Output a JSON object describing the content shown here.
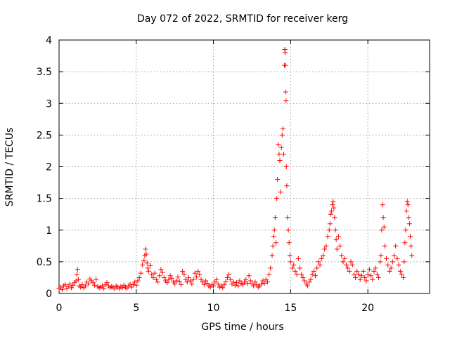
{
  "chart_data": {
    "type": "scatter",
    "title": "Day 072 of 2022, SRMTID for receiver kerg",
    "xlabel": "GPS time / hours",
    "ylabel": "SRMTID / TECUs",
    "xlim": [
      0,
      24
    ],
    "ylim": [
      0,
      4
    ],
    "xticks": [
      0,
      5,
      10,
      15,
      20
    ],
    "xtick_labels": [
      "0",
      "5",
      "10",
      "15",
      "20"
    ],
    "yticks": [
      0,
      0.5,
      1,
      1.5,
      2,
      2.5,
      3,
      3.5,
      4
    ],
    "ytick_labels": [
      "0",
      "0.5",
      "1",
      "1.5",
      "2",
      "2.5",
      "3",
      "3.5",
      "4"
    ],
    "grid": true,
    "marker": "+",
    "color": "#ff0000",
    "series": [
      {
        "name": "SRMTID",
        "points": [
          [
            0.0,
            0.08
          ],
          [
            0.1,
            0.1
          ],
          [
            0.2,
            0.06
          ],
          [
            0.3,
            0.12
          ],
          [
            0.4,
            0.14
          ],
          [
            0.5,
            0.08
          ],
          [
            0.6,
            0.11
          ],
          [
            0.7,
            0.15
          ],
          [
            0.8,
            0.09
          ],
          [
            0.9,
            0.13
          ],
          [
            1.0,
            0.17
          ],
          [
            1.1,
            0.2
          ],
          [
            1.15,
            0.3
          ],
          [
            1.2,
            0.38
          ],
          [
            1.25,
            0.22
          ],
          [
            1.3,
            0.12
          ],
          [
            1.4,
            0.1
          ],
          [
            1.5,
            0.14
          ],
          [
            1.6,
            0.09
          ],
          [
            1.7,
            0.12
          ],
          [
            1.8,
            0.18
          ],
          [
            1.9,
            0.15
          ],
          [
            2.0,
            0.23
          ],
          [
            2.1,
            0.2
          ],
          [
            2.2,
            0.17
          ],
          [
            2.3,
            0.13
          ],
          [
            2.4,
            0.22
          ],
          [
            2.5,
            0.11
          ],
          [
            2.6,
            0.09
          ],
          [
            2.7,
            0.1
          ],
          [
            2.8,
            0.12
          ],
          [
            2.9,
            0.08
          ],
          [
            3.0,
            0.14
          ],
          [
            3.1,
            0.17
          ],
          [
            3.2,
            0.12
          ],
          [
            3.3,
            0.09
          ],
          [
            3.4,
            0.11
          ],
          [
            3.5,
            0.1
          ],
          [
            3.6,
            0.07
          ],
          [
            3.7,
            0.12
          ],
          [
            3.8,
            0.1
          ],
          [
            3.9,
            0.08
          ],
          [
            4.0,
            0.11
          ],
          [
            4.1,
            0.09
          ],
          [
            4.2,
            0.13
          ],
          [
            4.3,
            0.1
          ],
          [
            4.4,
            0.08
          ],
          [
            4.5,
            0.12
          ],
          [
            4.6,
            0.15
          ],
          [
            4.7,
            0.1
          ],
          [
            4.8,
            0.14
          ],
          [
            4.9,
            0.18
          ],
          [
            5.0,
            0.13
          ],
          [
            5.1,
            0.2
          ],
          [
            5.2,
            0.25
          ],
          [
            5.3,
            0.32
          ],
          [
            5.4,
            0.45
          ],
          [
            5.5,
            0.52
          ],
          [
            5.55,
            0.6
          ],
          [
            5.6,
            0.7
          ],
          [
            5.65,
            0.62
          ],
          [
            5.7,
            0.48
          ],
          [
            5.75,
            0.4
          ],
          [
            5.8,
            0.35
          ],
          [
            5.9,
            0.44
          ],
          [
            6.0,
            0.3
          ],
          [
            6.1,
            0.25
          ],
          [
            6.2,
            0.32
          ],
          [
            6.3,
            0.22
          ],
          [
            6.4,
            0.18
          ],
          [
            6.5,
            0.28
          ],
          [
            6.6,
            0.38
          ],
          [
            6.7,
            0.33
          ],
          [
            6.8,
            0.25
          ],
          [
            6.9,
            0.2
          ],
          [
            7.0,
            0.17
          ],
          [
            7.1,
            0.22
          ],
          [
            7.2,
            0.28
          ],
          [
            7.3,
            0.24
          ],
          [
            7.4,
            0.18
          ],
          [
            7.5,
            0.15
          ],
          [
            7.6,
            0.2
          ],
          [
            7.7,
            0.26
          ],
          [
            7.8,
            0.19
          ],
          [
            7.9,
            0.14
          ],
          [
            8.0,
            0.35
          ],
          [
            8.1,
            0.3
          ],
          [
            8.2,
            0.22
          ],
          [
            8.3,
            0.18
          ],
          [
            8.4,
            0.25
          ],
          [
            8.5,
            0.2
          ],
          [
            8.6,
            0.15
          ],
          [
            8.7,
            0.22
          ],
          [
            8.8,
            0.32
          ],
          [
            8.9,
            0.26
          ],
          [
            9.0,
            0.35
          ],
          [
            9.1,
            0.3
          ],
          [
            9.2,
            0.22
          ],
          [
            9.3,
            0.18
          ],
          [
            9.4,
            0.14
          ],
          [
            9.5,
            0.2
          ],
          [
            9.6,
            0.16
          ],
          [
            9.7,
            0.12
          ],
          [
            9.8,
            0.1
          ],
          [
            9.9,
            0.14
          ],
          [
            10.0,
            0.12
          ],
          [
            10.1,
            0.18
          ],
          [
            10.2,
            0.22
          ],
          [
            10.3,
            0.15
          ],
          [
            10.4,
            0.1
          ],
          [
            10.5,
            0.12
          ],
          [
            10.6,
            0.09
          ],
          [
            10.7,
            0.14
          ],
          [
            10.8,
            0.19
          ],
          [
            10.9,
            0.25
          ],
          [
            11.0,
            0.3
          ],
          [
            11.1,
            0.22
          ],
          [
            11.2,
            0.15
          ],
          [
            11.3,
            0.18
          ],
          [
            11.4,
            0.13
          ],
          [
            11.5,
            0.17
          ],
          [
            11.6,
            0.12
          ],
          [
            11.7,
            0.2
          ],
          [
            11.8,
            0.16
          ],
          [
            11.9,
            0.14
          ],
          [
            12.0,
            0.18
          ],
          [
            12.1,
            0.22
          ],
          [
            12.2,
            0.16
          ],
          [
            12.3,
            0.28
          ],
          [
            12.4,
            0.2
          ],
          [
            12.5,
            0.15
          ],
          [
            12.6,
            0.12
          ],
          [
            12.7,
            0.18
          ],
          [
            12.8,
            0.14
          ],
          [
            12.9,
            0.1
          ],
          [
            13.0,
            0.12
          ],
          [
            13.1,
            0.15
          ],
          [
            13.2,
            0.2
          ],
          [
            13.3,
            0.16
          ],
          [
            13.4,
            0.22
          ],
          [
            13.5,
            0.18
          ],
          [
            13.6,
            0.3
          ],
          [
            13.7,
            0.4
          ],
          [
            13.8,
            0.6
          ],
          [
            13.85,
            0.75
          ],
          [
            13.9,
            0.9
          ],
          [
            13.95,
            1.0
          ],
          [
            14.0,
            1.2
          ],
          [
            14.05,
            0.8
          ],
          [
            14.1,
            1.5
          ],
          [
            14.15,
            1.8
          ],
          [
            14.2,
            2.35
          ],
          [
            14.25,
            2.2
          ],
          [
            14.3,
            2.1
          ],
          [
            14.35,
            1.6
          ],
          [
            14.4,
            2.3
          ],
          [
            14.45,
            2.5
          ],
          [
            14.5,
            2.6
          ],
          [
            14.55,
            2.2
          ],
          [
            14.6,
            3.6
          ],
          [
            14.62,
            3.85
          ],
          [
            14.64,
            3.8
          ],
          [
            14.66,
            3.6
          ],
          [
            14.68,
            3.18
          ],
          [
            14.7,
            3.04
          ],
          [
            14.72,
            2.0
          ],
          [
            14.75,
            1.7
          ],
          [
            14.8,
            1.2
          ],
          [
            14.85,
            1.0
          ],
          [
            14.9,
            0.8
          ],
          [
            14.95,
            0.6
          ],
          [
            15.0,
            0.5
          ],
          [
            15.1,
            0.4
          ],
          [
            15.2,
            0.45
          ],
          [
            15.3,
            0.35
          ],
          [
            15.4,
            0.3
          ],
          [
            15.5,
            0.55
          ],
          [
            15.6,
            0.4
          ],
          [
            15.7,
            0.3
          ],
          [
            15.8,
            0.25
          ],
          [
            15.9,
            0.2
          ],
          [
            16.0,
            0.15
          ],
          [
            16.1,
            0.12
          ],
          [
            16.2,
            0.18
          ],
          [
            16.3,
            0.22
          ],
          [
            16.4,
            0.3
          ],
          [
            16.5,
            0.35
          ],
          [
            16.6,
            0.28
          ],
          [
            16.7,
            0.4
          ],
          [
            16.8,
            0.5
          ],
          [
            16.9,
            0.45
          ],
          [
            17.0,
            0.55
          ],
          [
            17.1,
            0.6
          ],
          [
            17.2,
            0.7
          ],
          [
            17.3,
            0.75
          ],
          [
            17.4,
            0.9
          ],
          [
            17.5,
            1.0
          ],
          [
            17.55,
            1.1
          ],
          [
            17.6,
            1.25
          ],
          [
            17.65,
            1.3
          ],
          [
            17.7,
            1.4
          ],
          [
            17.75,
            1.45
          ],
          [
            17.8,
            1.35
          ],
          [
            17.85,
            1.2
          ],
          [
            17.9,
            1.0
          ],
          [
            17.95,
            0.85
          ],
          [
            18.0,
            0.7
          ],
          [
            18.1,
            0.9
          ],
          [
            18.2,
            0.75
          ],
          [
            18.3,
            0.6
          ],
          [
            18.4,
            0.5
          ],
          [
            18.5,
            0.55
          ],
          [
            18.6,
            0.45
          ],
          [
            18.7,
            0.4
          ],
          [
            18.8,
            0.35
          ],
          [
            18.9,
            0.5
          ],
          [
            19.0,
            0.45
          ],
          [
            19.1,
            0.3
          ],
          [
            19.2,
            0.25
          ],
          [
            19.3,
            0.35
          ],
          [
            19.4,
            0.3
          ],
          [
            19.5,
            0.22
          ],
          [
            19.6,
            0.28
          ],
          [
            19.7,
            0.35
          ],
          [
            19.8,
            0.25
          ],
          [
            19.9,
            0.2
          ],
          [
            20.0,
            0.3
          ],
          [
            20.1,
            0.38
          ],
          [
            20.2,
            0.28
          ],
          [
            20.3,
            0.22
          ],
          [
            20.4,
            0.35
          ],
          [
            20.5,
            0.4
          ],
          [
            20.6,
            0.3
          ],
          [
            20.7,
            0.25
          ],
          [
            20.8,
            0.5
          ],
          [
            20.85,
            0.6
          ],
          [
            20.9,
            1.0
          ],
          [
            20.95,
            1.4
          ],
          [
            21.0,
            1.2
          ],
          [
            21.05,
            1.05
          ],
          [
            21.1,
            0.75
          ],
          [
            21.2,
            0.55
          ],
          [
            21.3,
            0.45
          ],
          [
            21.4,
            0.35
          ],
          [
            21.5,
            0.4
          ],
          [
            21.6,
            0.5
          ],
          [
            21.7,
            0.6
          ],
          [
            21.8,
            0.75
          ],
          [
            21.9,
            0.55
          ],
          [
            22.0,
            0.45
          ],
          [
            22.1,
            0.35
          ],
          [
            22.2,
            0.3
          ],
          [
            22.3,
            0.25
          ],
          [
            22.35,
            0.5
          ],
          [
            22.4,
            0.8
          ],
          [
            22.45,
            1.0
          ],
          [
            22.5,
            1.3
          ],
          [
            22.55,
            1.45
          ],
          [
            22.6,
            1.4
          ],
          [
            22.65,
            1.2
          ],
          [
            22.7,
            1.1
          ],
          [
            22.75,
            0.9
          ],
          [
            22.8,
            0.75
          ],
          [
            22.85,
            0.6
          ]
        ]
      }
    ]
  }
}
